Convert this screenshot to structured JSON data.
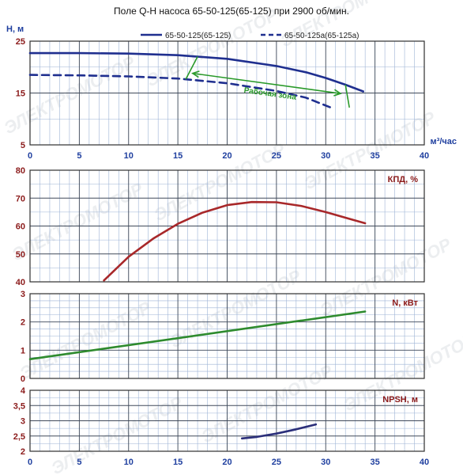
{
  "chart_data": [
    {
      "type": "line",
      "title": "Поле Q-H насоса 65-50-125(65-125) при 2900 об/мин.",
      "ylabel": "H, м",
      "xlabel": "м³/час",
      "xlim": [
        0,
        40
      ],
      "ylim": [
        5,
        25
      ],
      "x_ticks": [
        0,
        5,
        10,
        15,
        20,
        25,
        30,
        35,
        40
      ],
      "y_ticks": [
        5,
        15,
        25
      ],
      "grid": true,
      "legend_position": "top",
      "annotation": "Рабочая зона",
      "working_zone": {
        "q_start": 17,
        "q_end": 32
      },
      "series": [
        {
          "name": "65-50-125(65-125)",
          "style": "solid",
          "color": "#1f2f8f",
          "x": [
            0,
            5,
            10,
            15,
            20,
            25,
            28,
            30,
            32,
            33.8
          ],
          "y": [
            22.7,
            22.7,
            22.6,
            22.3,
            21.6,
            20.2,
            19.0,
            17.9,
            16.6,
            15.3
          ]
        },
        {
          "name": "65-50-125а(65-125а)",
          "style": "dashed",
          "color": "#1f2f8f",
          "x": [
            0,
            5,
            10,
            15,
            20,
            25,
            28,
            30.5
          ],
          "y": [
            18.5,
            18.4,
            18.2,
            17.8,
            16.9,
            15.4,
            14.1,
            12.2
          ]
        }
      ]
    },
    {
      "type": "line",
      "ylabel": "КПД, %",
      "xlim": [
        0,
        40
      ],
      "ylim": [
        40,
        80
      ],
      "x_ticks": [
        0,
        5,
        10,
        15,
        20,
        25,
        30,
        35,
        40
      ],
      "y_ticks": [
        40,
        50,
        60,
        70,
        80
      ],
      "grid": true,
      "series": [
        {
          "color": "#a8282a",
          "x": [
            7.5,
            10,
            12.5,
            15,
            17.5,
            20,
            22.5,
            25,
            27.5,
            30,
            32.5,
            34
          ],
          "y": [
            40.5,
            49.0,
            55.5,
            60.8,
            64.8,
            67.5,
            68.6,
            68.5,
            67.2,
            65.0,
            62.5,
            61.0
          ]
        }
      ]
    },
    {
      "type": "line",
      "ylabel": "N, кВт",
      "xlim": [
        0,
        40
      ],
      "ylim": [
        0,
        3
      ],
      "x_ticks": [
        0,
        5,
        10,
        15,
        20,
        25,
        30,
        35,
        40
      ],
      "y_ticks": [
        0,
        1,
        2,
        3
      ],
      "grid": true,
      "series": [
        {
          "color": "#2e8b2e",
          "x": [
            0,
            34
          ],
          "y": [
            0.68,
            2.37
          ]
        }
      ]
    },
    {
      "type": "line",
      "ylabel": "NPSH, м",
      "xlabel": "",
      "xlim": [
        0,
        40
      ],
      "ylim": [
        2,
        4
      ],
      "x_ticks": [
        0,
        5,
        10,
        15,
        20,
        25,
        30,
        35,
        40
      ],
      "y_ticks": [
        2,
        2.5,
        3,
        3.5,
        4
      ],
      "y_tick_labels": [
        "2",
        "2,5",
        "3",
        "3,5",
        "4"
      ],
      "grid": true,
      "series": [
        {
          "color": "#2b2f7a",
          "x": [
            21.5,
            23,
            25,
            27,
            29
          ],
          "y": [
            2.42,
            2.47,
            2.58,
            2.72,
            2.88
          ]
        }
      ]
    }
  ],
  "watermark": "ЭЛЕКТРОМОТОР"
}
